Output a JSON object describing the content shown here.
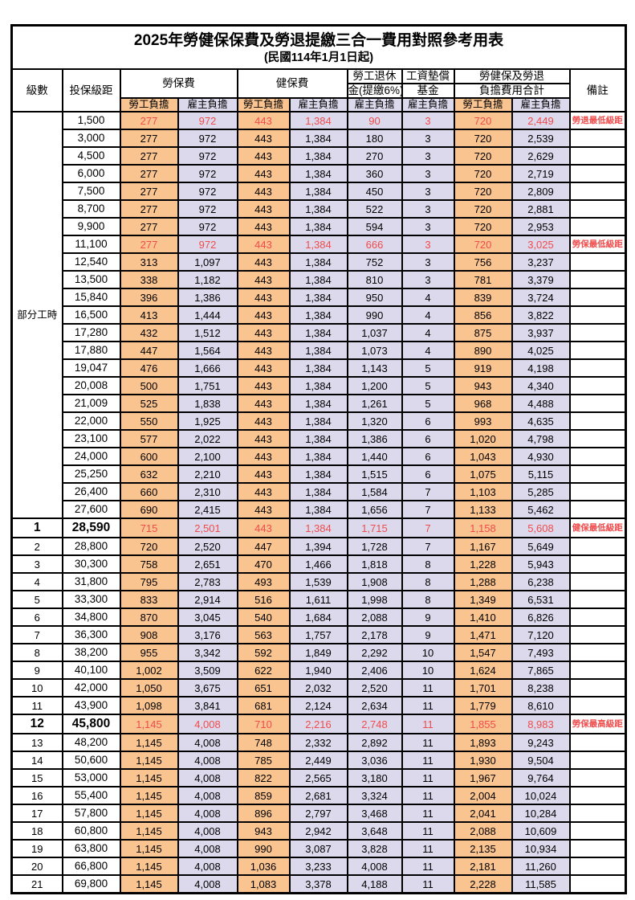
{
  "title": "2025年勞健保保費及勞退提繳三合一費用對照參考用表",
  "subtitle": "(民國114年1月1日起)",
  "part_time_label": "部分工時",
  "columns": {
    "level": "級數",
    "bracket": "投保級距",
    "labor": "勞保費",
    "health": "健保費",
    "pension_line1": "勞工退休",
    "pension_line2": "金(提繳6%)",
    "wage_line1": "工資墊償",
    "wage_line2": "基金",
    "total_line1": "勞健保及勞退",
    "total_line2": "負擔費用合計",
    "note": "備註",
    "employee_sub": "勞工負擔",
    "employer_sub": "雇主負擔"
  },
  "colors": {
    "employee_fill": "#FAC491",
    "employer_fill": "#DCD9EC",
    "highlight_red": "#F04C4C",
    "border": "#000000"
  },
  "rows": [
    {
      "lv": "",
      "sal": "1,500",
      "v": [
        "277",
        "972",
        "443",
        "1,384",
        "90",
        "3",
        "720",
        "2,449"
      ],
      "note": "勞退最低級距",
      "red": true
    },
    {
      "lv": "",
      "sal": "3,000",
      "v": [
        "277",
        "972",
        "443",
        "1,384",
        "180",
        "3",
        "720",
        "2,539"
      ],
      "note": ""
    },
    {
      "lv": "",
      "sal": "4,500",
      "v": [
        "277",
        "972",
        "443",
        "1,384",
        "270",
        "3",
        "720",
        "2,629"
      ],
      "note": ""
    },
    {
      "lv": "",
      "sal": "6,000",
      "v": [
        "277",
        "972",
        "443",
        "1,384",
        "360",
        "3",
        "720",
        "2,719"
      ],
      "note": ""
    },
    {
      "lv": "",
      "sal": "7,500",
      "v": [
        "277",
        "972",
        "443",
        "1,384",
        "450",
        "3",
        "720",
        "2,809"
      ],
      "note": ""
    },
    {
      "lv": "",
      "sal": "8,700",
      "v": [
        "277",
        "972",
        "443",
        "1,384",
        "522",
        "3",
        "720",
        "2,881"
      ],
      "note": ""
    },
    {
      "lv": "",
      "sal": "9,900",
      "v": [
        "277",
        "972",
        "443",
        "1,384",
        "594",
        "3",
        "720",
        "2,953"
      ],
      "note": ""
    },
    {
      "lv": "",
      "sal": "11,100",
      "v": [
        "277",
        "972",
        "443",
        "1,384",
        "666",
        "3",
        "720",
        "3,025"
      ],
      "note": "勞保最低級距",
      "red": true
    },
    {
      "lv": "",
      "sal": "12,540",
      "v": [
        "313",
        "1,097",
        "443",
        "1,384",
        "752",
        "3",
        "756",
        "3,237"
      ],
      "note": ""
    },
    {
      "lv": "",
      "sal": "13,500",
      "v": [
        "338",
        "1,182",
        "443",
        "1,384",
        "810",
        "3",
        "781",
        "3,379"
      ],
      "note": ""
    },
    {
      "lv": "",
      "sal": "15,840",
      "v": [
        "396",
        "1,386",
        "443",
        "1,384",
        "950",
        "4",
        "839",
        "3,724"
      ],
      "note": ""
    },
    {
      "lv": "",
      "sal": "16,500",
      "v": [
        "413",
        "1,444",
        "443",
        "1,384",
        "990",
        "4",
        "856",
        "3,822"
      ],
      "note": ""
    },
    {
      "lv": "",
      "sal": "17,280",
      "v": [
        "432",
        "1,512",
        "443",
        "1,384",
        "1,037",
        "4",
        "875",
        "3,937"
      ],
      "note": ""
    },
    {
      "lv": "",
      "sal": "17,880",
      "v": [
        "447",
        "1,564",
        "443",
        "1,384",
        "1,073",
        "4",
        "890",
        "4,025"
      ],
      "note": ""
    },
    {
      "lv": "",
      "sal": "19,047",
      "v": [
        "476",
        "1,666",
        "443",
        "1,384",
        "1,143",
        "5",
        "919",
        "4,198"
      ],
      "note": ""
    },
    {
      "lv": "",
      "sal": "20,008",
      "v": [
        "500",
        "1,751",
        "443",
        "1,384",
        "1,200",
        "5",
        "943",
        "4,340"
      ],
      "note": ""
    },
    {
      "lv": "",
      "sal": "21,009",
      "v": [
        "525",
        "1,838",
        "443",
        "1,384",
        "1,261",
        "5",
        "968",
        "4,488"
      ],
      "note": ""
    },
    {
      "lv": "",
      "sal": "22,000",
      "v": [
        "550",
        "1,925",
        "443",
        "1,384",
        "1,320",
        "6",
        "993",
        "4,635"
      ],
      "note": ""
    },
    {
      "lv": "",
      "sal": "23,100",
      "v": [
        "577",
        "2,022",
        "443",
        "1,384",
        "1,386",
        "6",
        "1,020",
        "4,798"
      ],
      "note": ""
    },
    {
      "lv": "",
      "sal": "24,000",
      "v": [
        "600",
        "2,100",
        "443",
        "1,384",
        "1,440",
        "6",
        "1,043",
        "4,930"
      ],
      "note": ""
    },
    {
      "lv": "",
      "sal": "25,250",
      "v": [
        "632",
        "2,210",
        "443",
        "1,384",
        "1,515",
        "6",
        "1,075",
        "5,115"
      ],
      "note": ""
    },
    {
      "lv": "",
      "sal": "26,400",
      "v": [
        "660",
        "2,310",
        "443",
        "1,384",
        "1,584",
        "7",
        "1,103",
        "5,285"
      ],
      "note": ""
    },
    {
      "lv": "",
      "sal": "27,600",
      "v": [
        "690",
        "2,415",
        "443",
        "1,384",
        "1,656",
        "7",
        "1,133",
        "5,462"
      ],
      "note": ""
    },
    {
      "lv": "1",
      "sal": "28,590",
      "v": [
        "715",
        "2,501",
        "443",
        "1,384",
        "1,715",
        "7",
        "1,158",
        "5,608"
      ],
      "note": "健保最低級距",
      "red": true,
      "big": true
    },
    {
      "lv": "2",
      "sal": "28,800",
      "v": [
        "720",
        "2,520",
        "447",
        "1,394",
        "1,728",
        "7",
        "1,167",
        "5,649"
      ],
      "note": ""
    },
    {
      "lv": "3",
      "sal": "30,300",
      "v": [
        "758",
        "2,651",
        "470",
        "1,466",
        "1,818",
        "8",
        "1,228",
        "5,943"
      ],
      "note": ""
    },
    {
      "lv": "4",
      "sal": "31,800",
      "v": [
        "795",
        "2,783",
        "493",
        "1,539",
        "1,908",
        "8",
        "1,288",
        "6,238"
      ],
      "note": ""
    },
    {
      "lv": "5",
      "sal": "33,300",
      "v": [
        "833",
        "2,914",
        "516",
        "1,611",
        "1,998",
        "8",
        "1,349",
        "6,531"
      ],
      "note": ""
    },
    {
      "lv": "6",
      "sal": "34,800",
      "v": [
        "870",
        "3,045",
        "540",
        "1,684",
        "2,088",
        "9",
        "1,410",
        "6,826"
      ],
      "note": ""
    },
    {
      "lv": "7",
      "sal": "36,300",
      "v": [
        "908",
        "3,176",
        "563",
        "1,757",
        "2,178",
        "9",
        "1,471",
        "7,120"
      ],
      "note": ""
    },
    {
      "lv": "8",
      "sal": "38,200",
      "v": [
        "955",
        "3,342",
        "592",
        "1,849",
        "2,292",
        "10",
        "1,547",
        "7,493"
      ],
      "note": ""
    },
    {
      "lv": "9",
      "sal": "40,100",
      "v": [
        "1,002",
        "3,509",
        "622",
        "1,940",
        "2,406",
        "10",
        "1,624",
        "7,865"
      ],
      "note": ""
    },
    {
      "lv": "10",
      "sal": "42,000",
      "v": [
        "1,050",
        "3,675",
        "651",
        "2,032",
        "2,520",
        "11",
        "1,701",
        "8,238"
      ],
      "note": ""
    },
    {
      "lv": "11",
      "sal": "43,900",
      "v": [
        "1,098",
        "3,841",
        "681",
        "2,124",
        "2,634",
        "11",
        "1,779",
        "8,610"
      ],
      "note": ""
    },
    {
      "lv": "12",
      "sal": "45,800",
      "v": [
        "1,145",
        "4,008",
        "710",
        "2,216",
        "2,748",
        "11",
        "1,855",
        "8,983"
      ],
      "note": "勞保最高級距",
      "red": true,
      "big": true
    },
    {
      "lv": "13",
      "sal": "48,200",
      "v": [
        "1,145",
        "4,008",
        "748",
        "2,332",
        "2,892",
        "11",
        "1,893",
        "9,243"
      ],
      "note": ""
    },
    {
      "lv": "14",
      "sal": "50,600",
      "v": [
        "1,145",
        "4,008",
        "785",
        "2,449",
        "3,036",
        "11",
        "1,930",
        "9,504"
      ],
      "note": ""
    },
    {
      "lv": "15",
      "sal": "53,000",
      "v": [
        "1,145",
        "4,008",
        "822",
        "2,565",
        "3,180",
        "11",
        "1,967",
        "9,764"
      ],
      "note": ""
    },
    {
      "lv": "16",
      "sal": "55,400",
      "v": [
        "1,145",
        "4,008",
        "859",
        "2,681",
        "3,324",
        "11",
        "2,004",
        "10,024"
      ],
      "note": ""
    },
    {
      "lv": "17",
      "sal": "57,800",
      "v": [
        "1,145",
        "4,008",
        "896",
        "2,797",
        "3,468",
        "11",
        "2,041",
        "10,284"
      ],
      "note": ""
    },
    {
      "lv": "18",
      "sal": "60,800",
      "v": [
        "1,145",
        "4,008",
        "943",
        "2,942",
        "3,648",
        "11",
        "2,088",
        "10,609"
      ],
      "note": ""
    },
    {
      "lv": "19",
      "sal": "63,800",
      "v": [
        "1,145",
        "4,008",
        "990",
        "3,087",
        "3,828",
        "11",
        "2,135",
        "10,934"
      ],
      "note": ""
    },
    {
      "lv": "20",
      "sal": "66,800",
      "v": [
        "1,145",
        "4,008",
        "1,036",
        "3,233",
        "4,008",
        "11",
        "2,181",
        "11,260"
      ],
      "note": ""
    },
    {
      "lv": "21",
      "sal": "69,800",
      "v": [
        "1,145",
        "4,008",
        "1,083",
        "3,378",
        "4,188",
        "11",
        "2,228",
        "11,585"
      ],
      "note": ""
    }
  ]
}
